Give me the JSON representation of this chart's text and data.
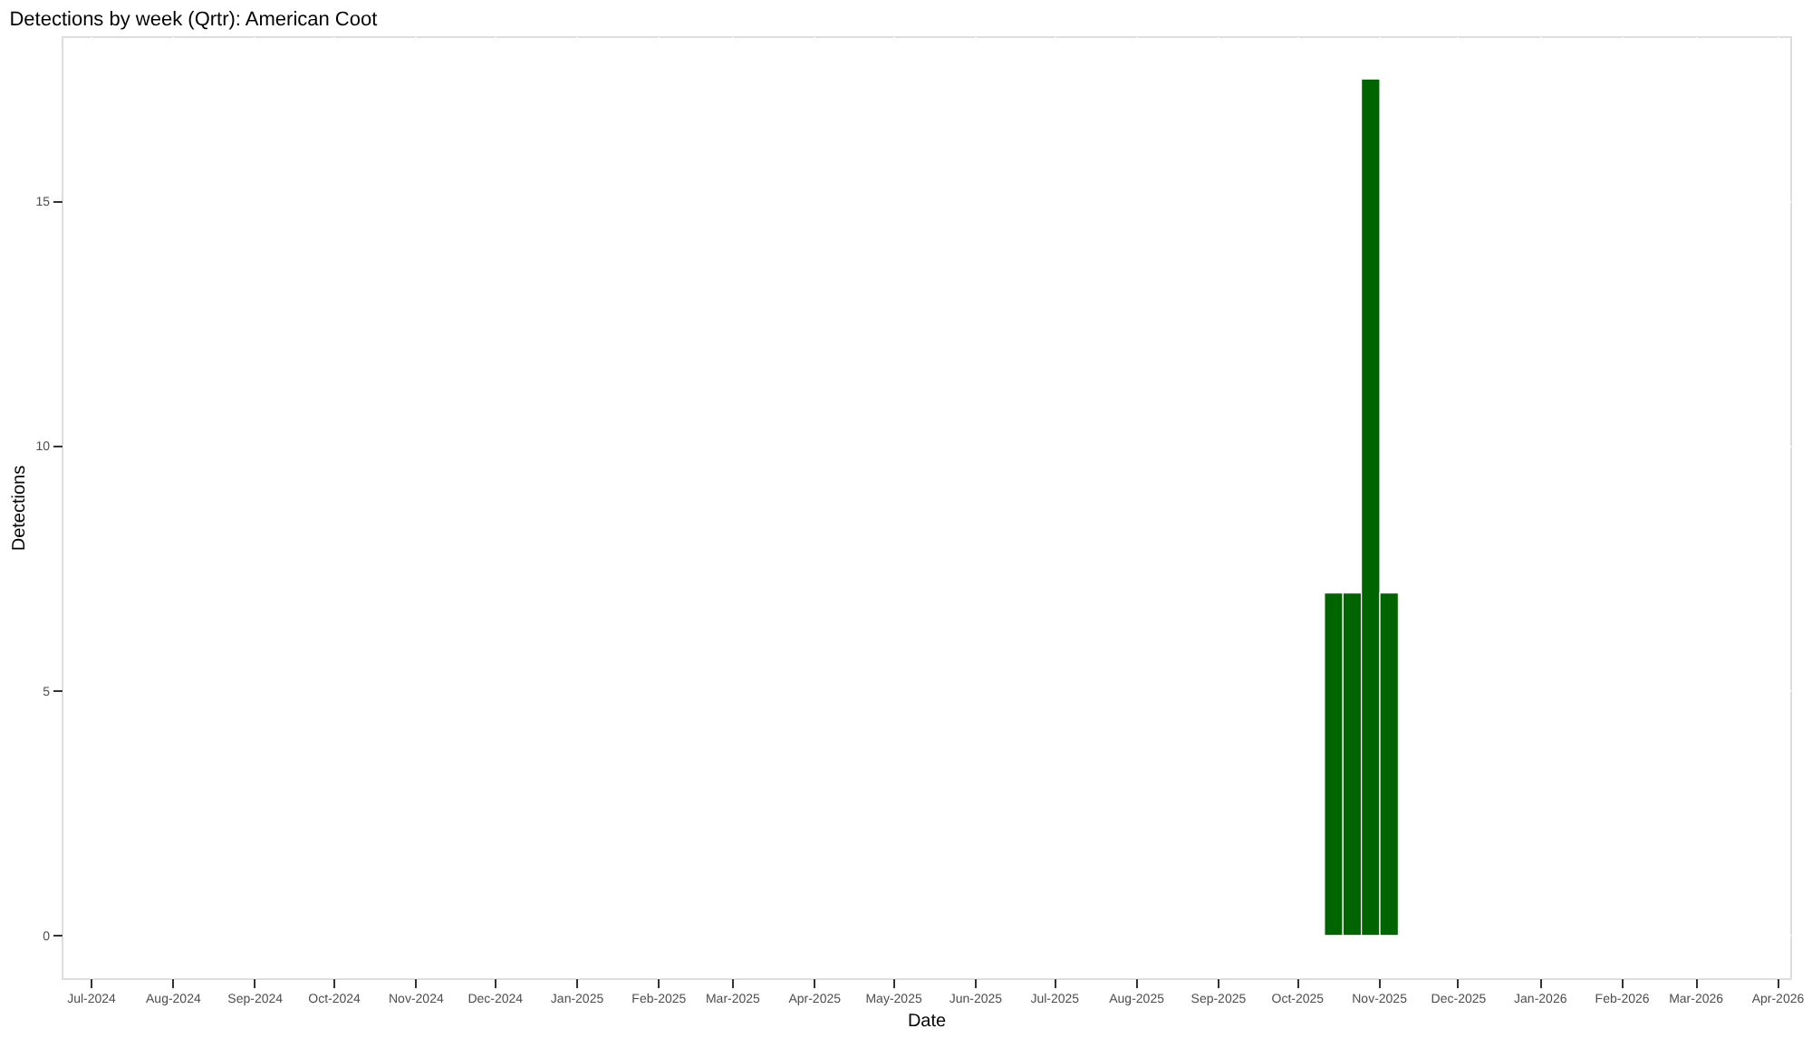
{
  "chart_data": {
    "type": "bar",
    "title": "Detections by week (Qrtr): American Coot",
    "xlabel": "Date",
    "ylabel": "Detections",
    "x": [
      "2025-10-15",
      "2025-10-22",
      "2025-10-29",
      "2025-11-05"
    ],
    "values": [
      7,
      7,
      17.5,
      7
    ],
    "color": "#006400",
    "xlim": [
      "2024-06-20",
      "2026-04-06"
    ],
    "xticks": [
      {
        "value": "2024-07-01",
        "label": "Jul-2024"
      },
      {
        "value": "2024-08-01",
        "label": "Aug-2024"
      },
      {
        "value": "2024-09-01",
        "label": "Sep-2024"
      },
      {
        "value": "2024-10-01",
        "label": "Oct-2024"
      },
      {
        "value": "2024-11-01",
        "label": "Nov-2024"
      },
      {
        "value": "2024-12-01",
        "label": "Dec-2024"
      },
      {
        "value": "2025-01-01",
        "label": "Jan-2025"
      },
      {
        "value": "2025-02-01",
        "label": "Feb-2025"
      },
      {
        "value": "2025-03-01",
        "label": "Mar-2025"
      },
      {
        "value": "2025-04-01",
        "label": "Apr-2025"
      },
      {
        "value": "2025-05-01",
        "label": "May-2025"
      },
      {
        "value": "2025-06-01",
        "label": "Jun-2025"
      },
      {
        "value": "2025-07-01",
        "label": "Jul-2025"
      },
      {
        "value": "2025-08-01",
        "label": "Aug-2025"
      },
      {
        "value": "2025-09-01",
        "label": "Sep-2025"
      },
      {
        "value": "2025-10-01",
        "label": "Oct-2025"
      },
      {
        "value": "2025-11-01",
        "label": "Nov-2025"
      },
      {
        "value": "2025-12-01",
        "label": "Dec-2025"
      },
      {
        "value": "2026-01-01",
        "label": "Jan-2026"
      },
      {
        "value": "2026-02-01",
        "label": "Feb-2026"
      },
      {
        "value": "2026-03-01",
        "label": "Mar-2026"
      },
      {
        "value": "2026-04-01",
        "label": "Apr-2026"
      }
    ],
    "ylim": [
      -0.875,
      18.375
    ],
    "yticks": [
      0,
      5,
      10,
      15
    ],
    "grid": true
  }
}
